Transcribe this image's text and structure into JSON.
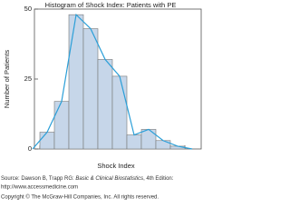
{
  "chart_data": {
    "type": "histogram",
    "title": "Histogram of Shock Index: Patients with PE",
    "x_label": "Shock Index",
    "y_label": "Number of Patients",
    "values": [
      6,
      17,
      48,
      43,
      32,
      26,
      5,
      7,
      3,
      1
    ],
    "color": "#c6d6e9",
    "polygon": {
      "values": [
        0,
        6,
        17,
        48,
        43,
        32,
        26,
        5,
        7,
        3,
        1,
        0
      ],
      "color": "#2b9fd8"
    },
    "ylim": [
      0,
      50
    ],
    "yticks": [
      0,
      25,
      50
    ],
    "source": {
      "prefix": "Source: Dawson B, Trapp RG:",
      "book": "Basic & Clinical Biostatistics",
      "edition": ", 4th Edition:",
      "url": "http://www.accessmedicine.com",
      "copyright": "Copyright © The McGraw-Hill Companies, Inc. All rights reserved."
    }
  }
}
